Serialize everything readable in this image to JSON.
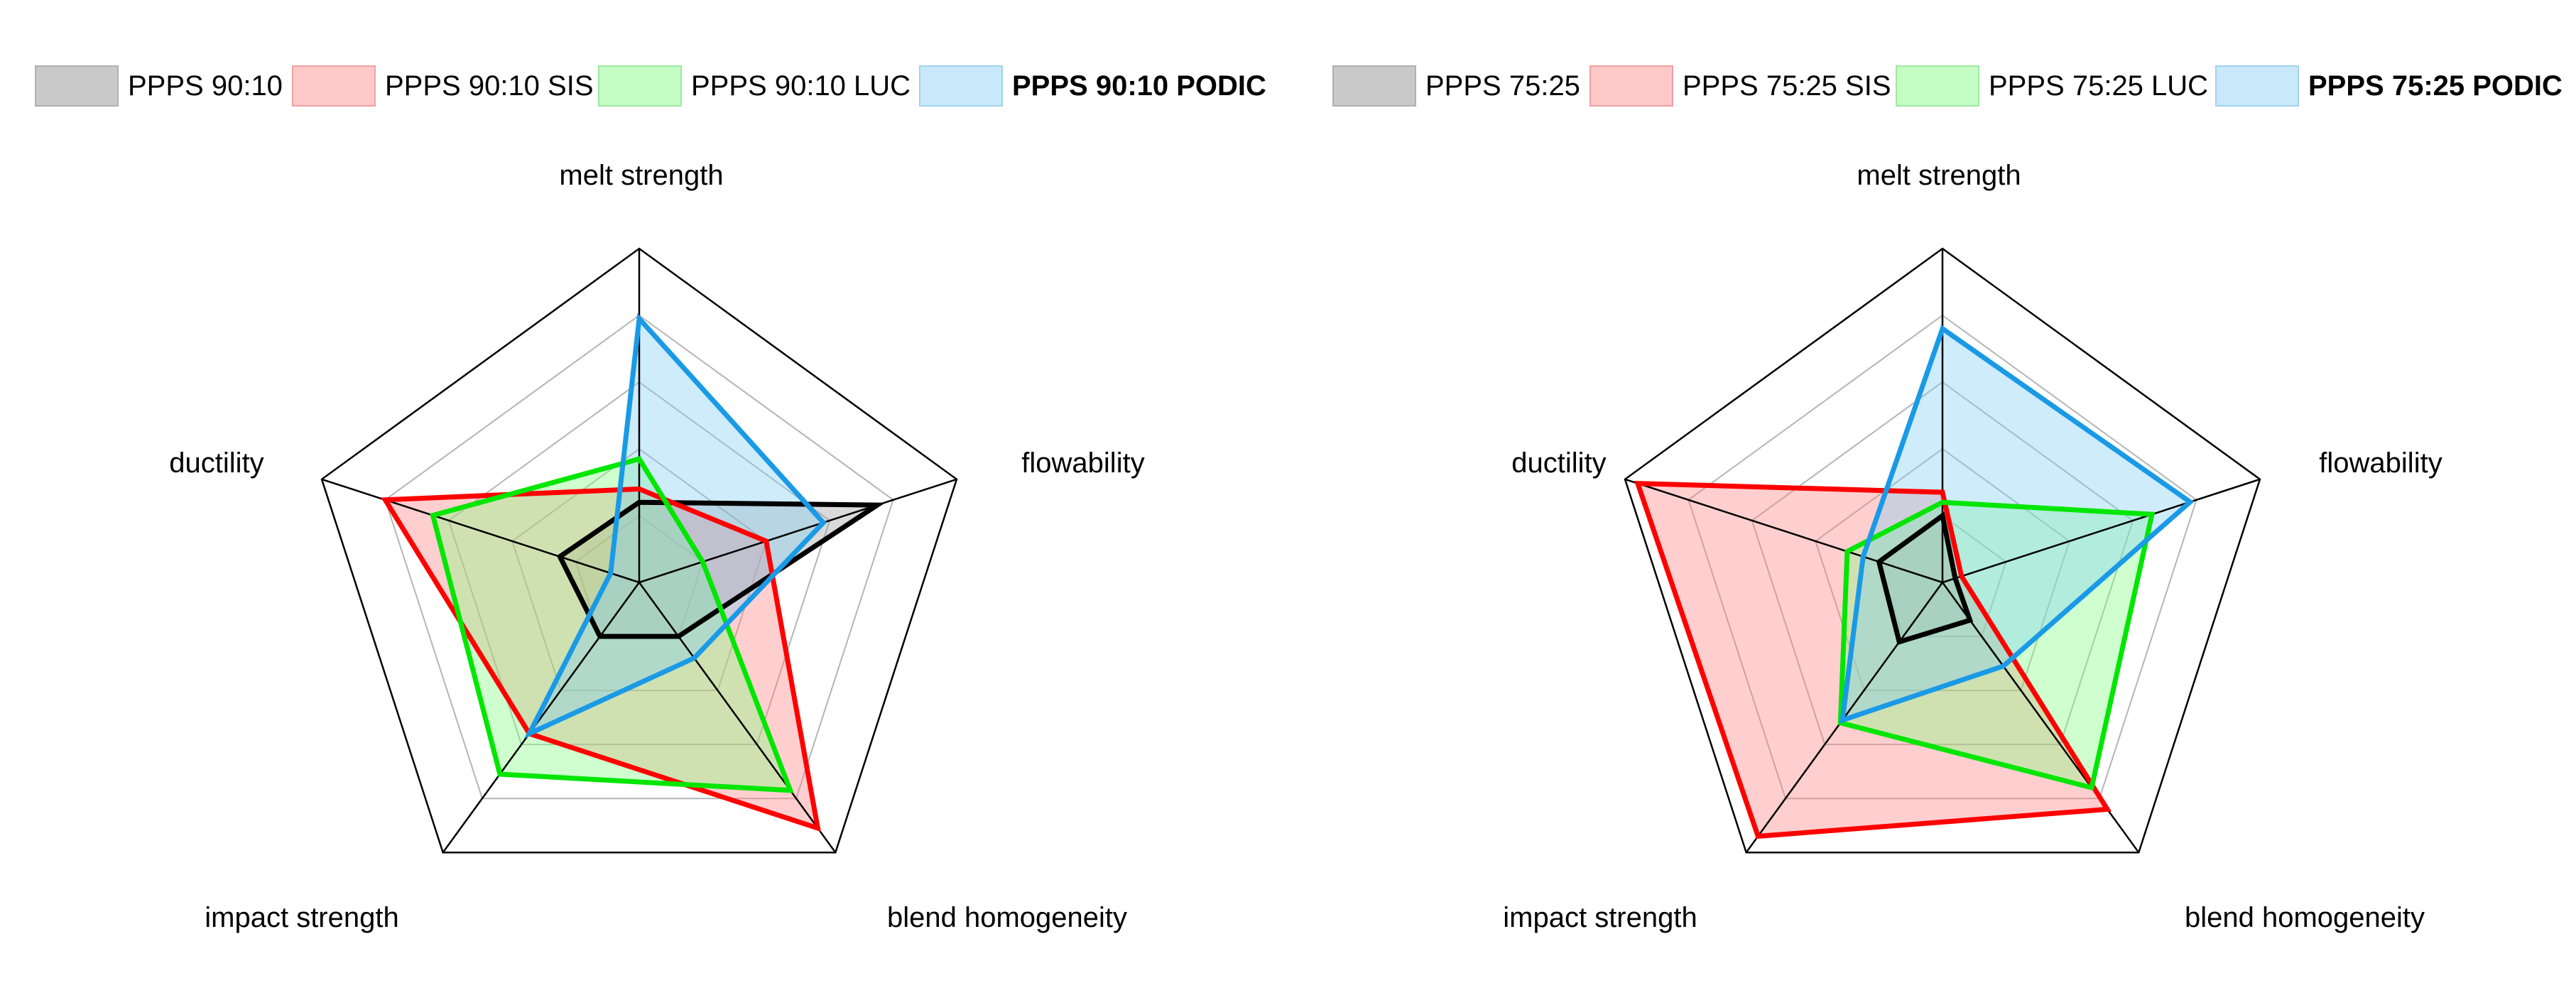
{
  "chart_data": [
    {
      "type": "radar",
      "axes": [
        "melt strength",
        "flowability",
        "blend homogeneity",
        "impact strength",
        "ductility"
      ],
      "rlim": [
        0,
        5
      ],
      "grid": true,
      "legend_position": "top",
      "series": [
        {
          "name": "PPPS 90:10",
          "bold": false,
          "line_color": "#000000",
          "fill_color": "#9e9e9e",
          "values": [
            1.2,
            3.75,
            1.0,
            1.0,
            1.25
          ]
        },
        {
          "name": "PPPS 90:10 SIS",
          "bold": false,
          "line_color": "#ff0000",
          "fill_color": "#ff8080",
          "values": [
            1.4,
            2.0,
            4.55,
            2.8,
            4.0
          ]
        },
        {
          "name": "PPPS 90:10 LUC",
          "bold": false,
          "line_color": "#00e600",
          "fill_color": "#80ff80",
          "values": [
            1.85,
            1.0,
            3.85,
            3.55,
            3.25
          ]
        },
        {
          "name": "PPPS 90:10 PODIC",
          "bold": true,
          "line_color": "#1a9ae6",
          "fill_color": "#80ccf5",
          "values": [
            3.95,
            2.9,
            1.4,
            2.8,
            0.45
          ]
        }
      ]
    },
    {
      "type": "radar",
      "axes": [
        "melt strength",
        "flowability",
        "blend homogeneity",
        "impact strength",
        "ductility"
      ],
      "rlim": [
        0,
        5
      ],
      "grid": true,
      "legend_position": "top",
      "series": [
        {
          "name": "PPPS 75:25",
          "bold": false,
          "line_color": "#000000",
          "fill_color": "#9e9e9e",
          "values": [
            1.0,
            0.2,
            0.7,
            1.1,
            1.0
          ]
        },
        {
          "name": "PPPS 75:25 SIS",
          "bold": false,
          "line_color": "#ff0000",
          "fill_color": "#ff8080",
          "values": [
            1.35,
            0.3,
            4.2,
            4.7,
            4.8
          ]
        },
        {
          "name": "PPPS 75:25 LUC",
          "bold": false,
          "line_color": "#00e600",
          "fill_color": "#80ff80",
          "values": [
            1.2,
            3.3,
            3.8,
            2.6,
            1.5
          ]
        },
        {
          "name": "PPPS 75:25 PODIC",
          "bold": true,
          "line_color": "#1a9ae6",
          "fill_color": "#80ccf5",
          "values": [
            3.8,
            3.9,
            1.55,
            2.55,
            1.25
          ]
        }
      ]
    }
  ]
}
